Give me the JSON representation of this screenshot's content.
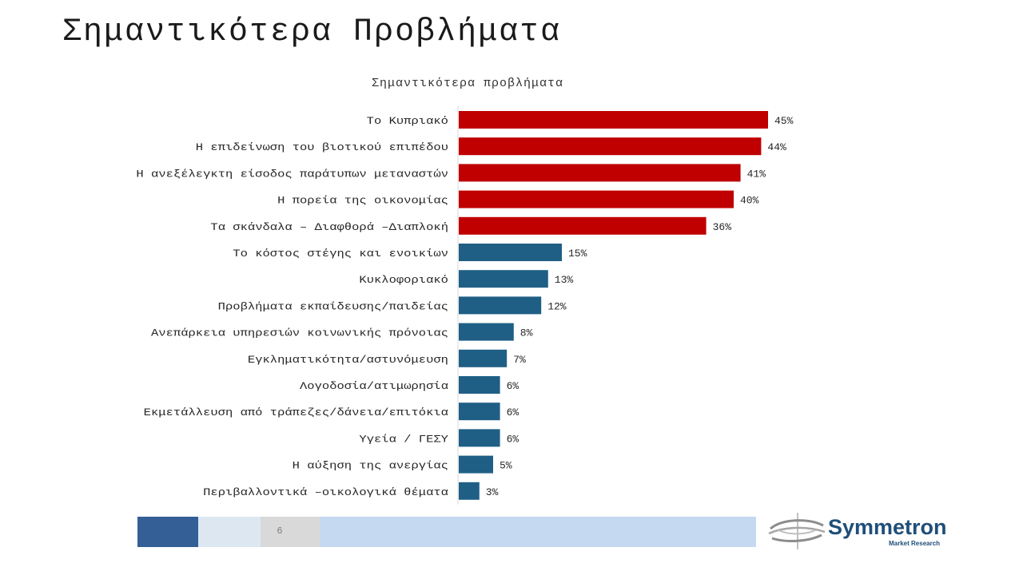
{
  "page": {
    "title": "Σημαντικότερα Προβλήματα",
    "page_number": "6"
  },
  "logo": {
    "name": "Symmetron",
    "subtitle": "Market Research"
  },
  "colors": {
    "top_issue": "#c00000",
    "other_issue": "#1f5f86"
  },
  "chart_data": {
    "type": "bar",
    "orientation": "horizontal",
    "title": "Σημαντικότερα προβλήματα",
    "categories": [
      "Το Κυπριακό",
      "Η επιδείνωση του βιοτικού επιπέδου",
      "Η ανεξέλεγκτη είσοδος παράτυπων μεταναστών",
      "Η πορεία της οικονομίας",
      "Τα σκάνδαλα – Διαφθορά –Διαπλοκή",
      "Το κόστος στέγης και ενοικίων",
      "Κυκλοφοριακό",
      "Προβλήματα εκπαίδευσης/παιδείας",
      "Ανεπάρκεια υπηρεσιών κοινωνικής πρόνοιας",
      "Εγκληματικότητα/αστυνόμευση",
      "Λογοδοσία/ατιμωρησία",
      "Εκμετάλλευση από τράπεζες/δάνεια/επιτόκια",
      "Υγεία / ΓΕΣΥ",
      "Η αύξηση της ανεργίας",
      "Περιβαλλοντικά –οικολογικά θέματα"
    ],
    "values": [
      45,
      44,
      41,
      40,
      36,
      15,
      13,
      12,
      8,
      7,
      6,
      6,
      6,
      5,
      3
    ],
    "value_labels": [
      "45%",
      "44%",
      "41%",
      "40%",
      "36%",
      "15%",
      "13%",
      "12%",
      "8%",
      "7%",
      "6%",
      "6%",
      "6%",
      "5%",
      "3%"
    ],
    "highlight_top_n": 5,
    "unit": "%",
    "xlim": [
      0,
      50
    ],
    "grid": false,
    "legend": "none"
  }
}
